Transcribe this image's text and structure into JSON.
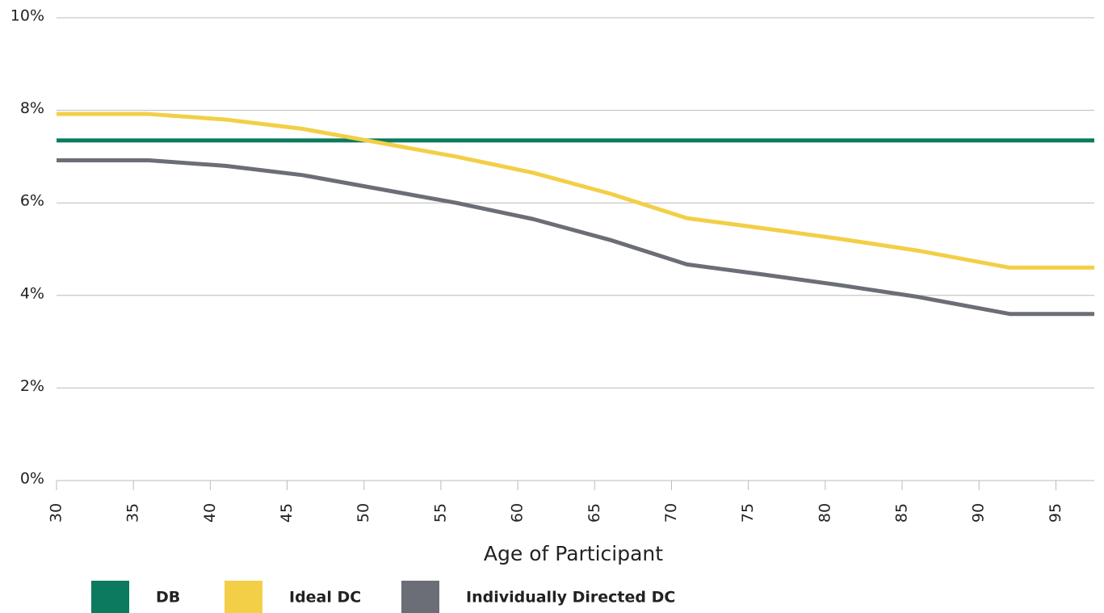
{
  "chart_data": {
    "type": "line",
    "x_label": "Age of Participant",
    "x": [
      30,
      36,
      41,
      46,
      51,
      56,
      61,
      66,
      71,
      76,
      81,
      86,
      92,
      97.5
    ],
    "series": [
      {
        "name": "DB",
        "color": "#0b7a5f",
        "values": [
          7.35,
          7.35,
          7.35,
          7.35,
          7.35,
          7.35,
          7.35,
          7.35,
          7.35,
          7.35,
          7.35,
          7.35,
          7.35,
          7.35
        ]
      },
      {
        "name": "Ideal DC",
        "color": "#f2cf47",
        "values": [
          7.92,
          7.92,
          7.8,
          7.6,
          7.3,
          7.0,
          6.65,
          6.2,
          5.67,
          5.45,
          5.22,
          4.97,
          4.6,
          4.6
        ]
      },
      {
        "name": "Individually Directed DC",
        "color": "#6b6e76",
        "values": [
          6.92,
          6.92,
          6.8,
          6.6,
          6.3,
          6.0,
          5.65,
          5.2,
          4.67,
          4.45,
          4.22,
          3.97,
          3.6,
          3.6
        ]
      }
    ],
    "xlim": [
      30,
      97.5
    ],
    "xticks": [
      30,
      35,
      40,
      45,
      50,
      55,
      60,
      65,
      70,
      75,
      80,
      85,
      90,
      95
    ],
    "ylim": [
      0,
      10
    ],
    "yticks": [
      {
        "value": 0,
        "label": "0%"
      },
      {
        "value": 2,
        "label": "2%"
      },
      {
        "value": 4,
        "label": "4%"
      },
      {
        "value": 6,
        "label": "6%"
      },
      {
        "value": 8,
        "label": "8%"
      },
      {
        "value": 10,
        "label": "10%"
      }
    ],
    "grid": true,
    "legend": "bottom"
  }
}
